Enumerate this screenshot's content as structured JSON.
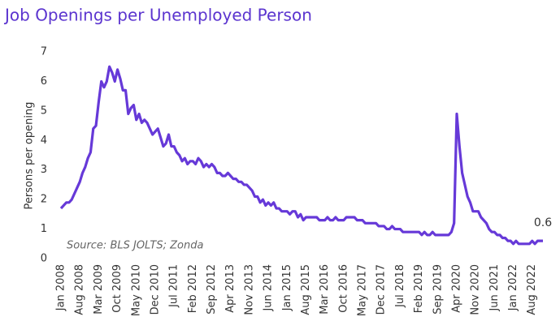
{
  "chart_data": {
    "type": "line",
    "title": "Job Openings per Unemployed Person",
    "y_label": "Persons per opening",
    "annotation": "Source: BLS JOLTS; Zonda",
    "color": "#6639d8",
    "categories": [
      "Jan 2008",
      null,
      null,
      null,
      null,
      null,
      null,
      "Aug 2008",
      null,
      null,
      null,
      null,
      null,
      null,
      "Mar 2009",
      null,
      null,
      null,
      null,
      null,
      null,
      "Oct 2009",
      null,
      null,
      null,
      null,
      null,
      null,
      "May 2010",
      null,
      null,
      null,
      null,
      null,
      null,
      "Dec 2010",
      null,
      null,
      null,
      null,
      null,
      null,
      "Jul 2011",
      null,
      null,
      null,
      null,
      null,
      null,
      "Feb 2012",
      null,
      null,
      null,
      null,
      null,
      null,
      "Sep 2012",
      null,
      null,
      null,
      null,
      null,
      null,
      "Apr 2013",
      null,
      null,
      null,
      null,
      null,
      null,
      "Nov 2013",
      null,
      null,
      null,
      null,
      null,
      null,
      "Jun 2014",
      null,
      null,
      null,
      null,
      null,
      null,
      "Jan 2015",
      null,
      null,
      null,
      null,
      null,
      null,
      "Aug 2015",
      null,
      null,
      null,
      null,
      null,
      null,
      "Mar 2016",
      null,
      null,
      null,
      null,
      null,
      null,
      "Oct 2016",
      null,
      null,
      null,
      null,
      null,
      null,
      "May 2017",
      null,
      null,
      null,
      null,
      null,
      null,
      "Dec 2017",
      null,
      null,
      null,
      null,
      null,
      null,
      "Jul 2018",
      null,
      null,
      null,
      null,
      null,
      null,
      "Feb 2019",
      null,
      null,
      null,
      null,
      null,
      null,
      "Sep 2019",
      null,
      null,
      null,
      null,
      null,
      null,
      "Apr 2020",
      null,
      null,
      null,
      null,
      null,
      null,
      "Nov 2020",
      null,
      null,
      null,
      null,
      null,
      null,
      "Jun 2021",
      null,
      null,
      null,
      null,
      null,
      null,
      "Jan 2022",
      null,
      null,
      null,
      null,
      null,
      null,
      "Aug 2022",
      null,
      null,
      null,
      null
    ],
    "values": [
      1.7,
      1.8,
      1.9,
      1.9,
      2.0,
      2.2,
      2.4,
      2.6,
      2.9,
      3.1,
      3.4,
      3.6,
      4.4,
      4.5,
      5.3,
      6.0,
      5.8,
      6.0,
      6.5,
      6.3,
      6.0,
      6.4,
      6.1,
      5.7,
      5.7,
      4.9,
      5.1,
      5.2,
      4.7,
      4.9,
      4.6,
      4.7,
      4.6,
      4.4,
      4.2,
      4.3,
      4.4,
      4.1,
      3.8,
      3.9,
      4.2,
      3.8,
      3.8,
      3.6,
      3.5,
      3.3,
      3.4,
      3.2,
      3.3,
      3.3,
      3.2,
      3.4,
      3.3,
      3.1,
      3.2,
      3.1,
      3.2,
      3.1,
      2.9,
      2.9,
      2.8,
      2.8,
      2.9,
      2.8,
      2.7,
      2.7,
      2.6,
      2.6,
      2.5,
      2.5,
      2.4,
      2.3,
      2.1,
      2.1,
      1.9,
      2.0,
      1.8,
      1.9,
      1.8,
      1.9,
      1.7,
      1.7,
      1.6,
      1.6,
      1.6,
      1.5,
      1.6,
      1.6,
      1.4,
      1.5,
      1.3,
      1.4,
      1.4,
      1.4,
      1.4,
      1.4,
      1.3,
      1.3,
      1.3,
      1.4,
      1.3,
      1.3,
      1.4,
      1.3,
      1.3,
      1.3,
      1.4,
      1.4,
      1.4,
      1.4,
      1.3,
      1.3,
      1.3,
      1.2,
      1.2,
      1.2,
      1.2,
      1.2,
      1.1,
      1.1,
      1.1,
      1.0,
      1.0,
      1.1,
      1.0,
      1.0,
      1.0,
      0.9,
      0.9,
      0.9,
      0.9,
      0.9,
      0.9,
      0.9,
      0.8,
      0.9,
      0.8,
      0.8,
      0.9,
      0.8,
      0.8,
      0.8,
      0.8,
      0.8,
      0.8,
      0.9,
      1.2,
      4.9,
      3.8,
      2.9,
      2.5,
      2.1,
      1.9,
      1.6,
      1.6,
      1.6,
      1.4,
      1.3,
      1.2,
      1.0,
      0.9,
      0.9,
      0.8,
      0.8,
      0.7,
      0.7,
      0.6,
      0.6,
      0.5,
      0.6,
      0.5,
      0.5,
      0.5,
      0.5,
      0.5,
      0.6,
      0.5,
      0.6,
      0.6,
      0.6
    ],
    "ylim": [
      0,
      7
    ],
    "yticks": [
      0,
      1,
      2,
      3,
      4,
      5,
      6,
      7
    ]
  }
}
